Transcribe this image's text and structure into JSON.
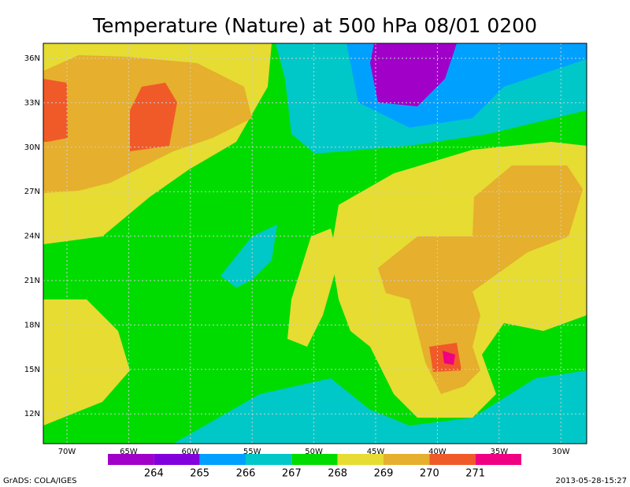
{
  "title": "Temperature (Nature) at 500 hPa 08/01 0200",
  "x_labels": [
    "70W",
    "65W",
    "60W",
    "55W",
    "50W",
    "45W",
    "40W",
    "35W",
    "30W"
  ],
  "y_labels": [
    "36N",
    "33N",
    "30N",
    "27N",
    "24N",
    "21N",
    "18N",
    "15N",
    "12N"
  ],
  "colorbar": {
    "colors": [
      "#a000c8",
      "#8200dc",
      "#00a0ff",
      "#00c8c8",
      "#00dc00",
      "#e6dc32",
      "#e6af2d",
      "#f05a28",
      "#f00082"
    ],
    "labels": [
      264,
      265,
      266,
      267,
      268,
      269,
      270,
      271
    ]
  },
  "footer": {
    "left": "GrADS: COLA/IGES",
    "right": "2013-05-28-15:27"
  }
}
